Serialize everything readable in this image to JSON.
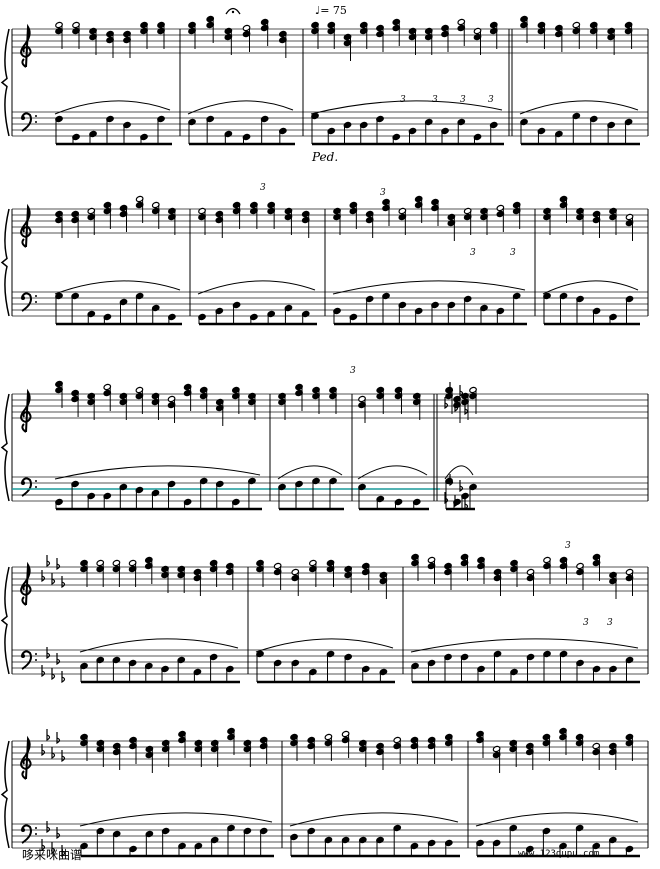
{
  "score": {
    "tempo_mark": "♩= 75",
    "pedal_mark": "Ped.",
    "tuplet_label": "3",
    "key_change": "D-flat major (5 flats) from system 3, measure 4",
    "systems": 5
  },
  "watermark": {
    "site_name": "哆来咪曲谱",
    "site_url": "www.123qupu.com"
  },
  "colors": {
    "ink": "#000000",
    "highlight_line": "#1a9a9a"
  }
}
